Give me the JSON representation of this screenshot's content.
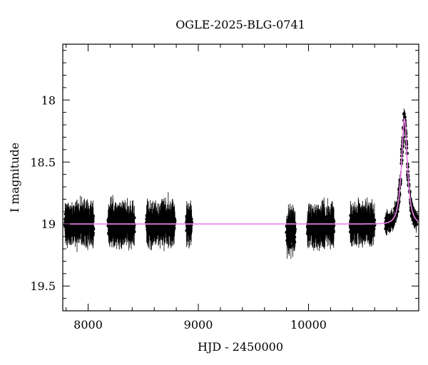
{
  "chart_data": {
    "type": "scatter",
    "title": "OGLE-2025-BLG-0741",
    "xlabel": "HJD - 2450000",
    "ylabel": "I magnitude",
    "xlim": [
      7770,
      11000
    ],
    "ylim": [
      19.7,
      17.55
    ],
    "y_inverted": true,
    "x_ticks": [
      8000,
      9000,
      10000
    ],
    "y_ticks": [
      18,
      18.5,
      19,
      19.5
    ],
    "grid": false,
    "baseline_mag": 19.0,
    "observing_seasons": [
      {
        "start": 7790,
        "end": 8050,
        "mag": 19.0,
        "scatter": 0.1
      },
      {
        "start": 8180,
        "end": 8420,
        "mag": 19.0,
        "scatter": 0.1
      },
      {
        "start": 8530,
        "end": 8790,
        "mag": 19.0,
        "scatter": 0.1
      },
      {
        "start": 8890,
        "end": 8940,
        "mag": 19.0,
        "scatter": 0.09
      },
      {
        "start": 9800,
        "end": 9880,
        "mag": 19.05,
        "scatter": 0.12
      },
      {
        "start": 9990,
        "end": 10230,
        "mag": 19.02,
        "scatter": 0.09
      },
      {
        "start": 10380,
        "end": 10600,
        "mag": 19.0,
        "scatter": 0.09
      }
    ],
    "event": {
      "start": 10700,
      "end": 10990,
      "peak_time": 10870,
      "peak_mag": 18.1
    },
    "model": {
      "color": "#ee82ee",
      "baseline_mag": 19.0,
      "peak_time": 10870,
      "peak_mag": 18.15,
      "tE": 45
    },
    "point_color": "#000000"
  }
}
